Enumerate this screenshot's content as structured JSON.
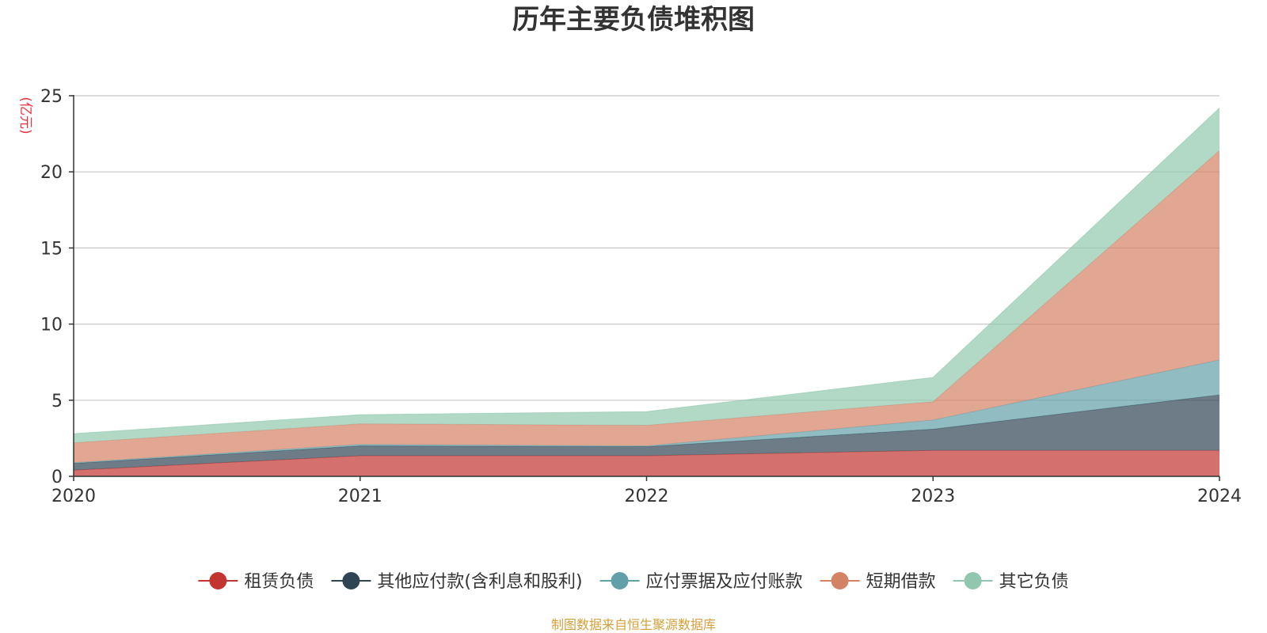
{
  "chart_data": {
    "type": "area",
    "stacked": true,
    "title": "历年主要负债堆积图",
    "unit_label": "(亿元)",
    "source": "制图数据来自恒生聚源数据库",
    "x": [
      "2020",
      "2021",
      "2022",
      "2023",
      "2024"
    ],
    "ylim": [
      0,
      25
    ],
    "yticks": [
      0,
      5,
      10,
      15,
      20,
      25
    ],
    "grid": true,
    "legend_position": "bottom-center",
    "series": [
      {
        "name": "租赁负债",
        "color": "#c23531",
        "values": [
          0.4,
          1.35,
          1.35,
          1.7,
          1.7
        ]
      },
      {
        "name": "其他应付款(含利息和股利)",
        "color": "#2f4554",
        "values": [
          0.45,
          0.65,
          0.6,
          1.4,
          3.65
        ]
      },
      {
        "name": "应付票据及应付账款",
        "color": "#61a0a8",
        "values": [
          0.05,
          0.1,
          0.05,
          0.6,
          2.3
        ]
      },
      {
        "name": "短期借款",
        "color": "#d48265",
        "values": [
          1.3,
          1.35,
          1.35,
          1.2,
          13.75
        ]
      },
      {
        "name": "其它负债",
        "color": "#91c7ae",
        "values": [
          0.6,
          0.6,
          0.9,
          1.6,
          2.8
        ]
      }
    ]
  }
}
